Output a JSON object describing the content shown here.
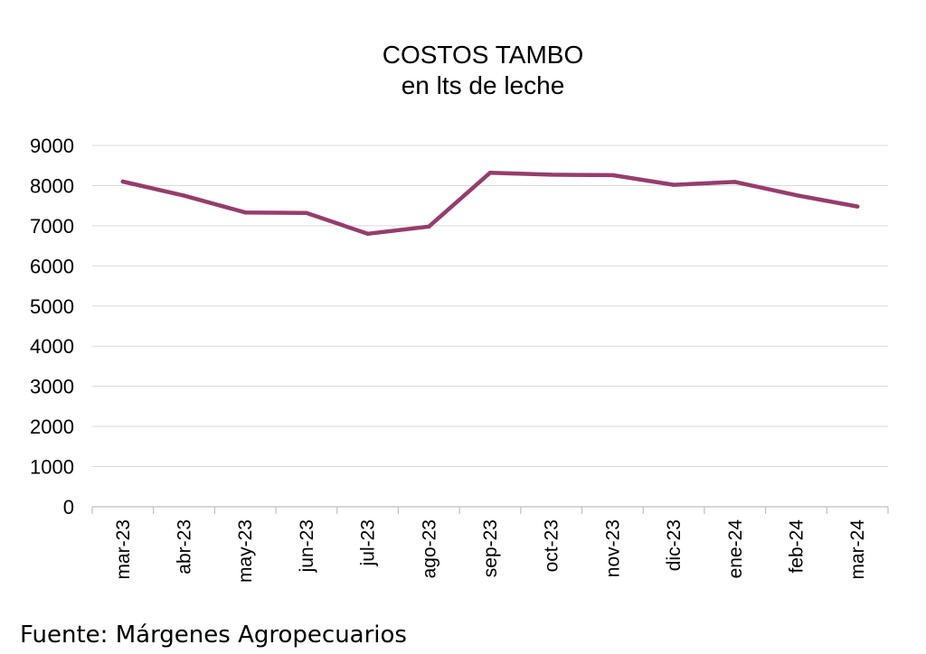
{
  "chart_data": {
    "type": "line",
    "title": "COSTOS TAMBO",
    "subtitle": "en lts de leche",
    "categories": [
      "mar-23",
      "abr-23",
      "may-23",
      "jun-23",
      "jul-23",
      "ago-23",
      "sep-23",
      "oct-23",
      "nov-23",
      "dic-23",
      "ene-24",
      "feb-24",
      "mar-24"
    ],
    "series": [
      {
        "values": [
          8100,
          7750,
          7330,
          7320,
          6800,
          6980,
          8320,
          8270,
          8260,
          8020,
          8090,
          7760,
          7480
        ]
      }
    ],
    "ylim": [
      0,
      9000
    ],
    "yticks": [
      0,
      1000,
      2000,
      3000,
      4000,
      5000,
      6000,
      7000,
      8000,
      9000
    ],
    "grid": true,
    "legend": "none",
    "line_color": "#963D6B",
    "grid_color": "#D9D9D9"
  },
  "source": "Fuente: Márgenes Agropecuarios"
}
